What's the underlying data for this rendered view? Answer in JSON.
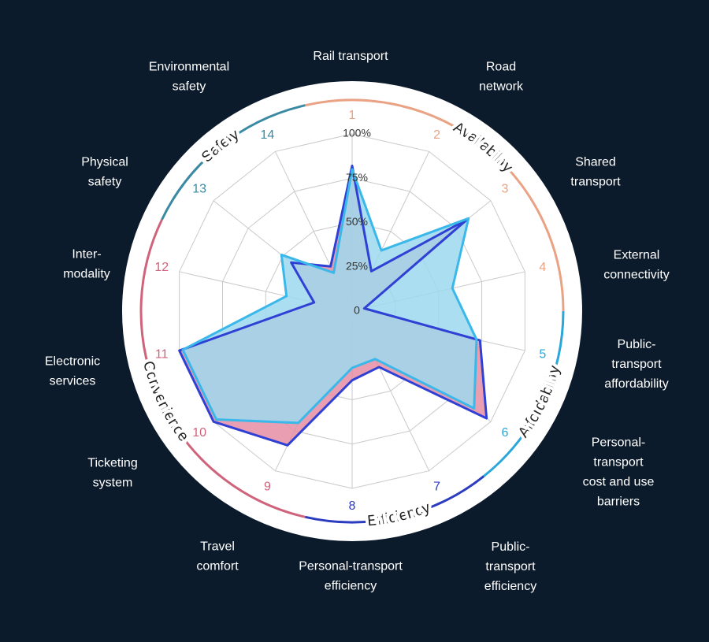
{
  "chart_data": {
    "type": "radar",
    "categories": [
      [
        "Rail transport"
      ],
      [
        "Road",
        "network"
      ],
      [
        "Shared",
        "transport"
      ],
      [
        "External",
        "connectivity"
      ],
      [
        "Public-",
        "transport",
        "affordability"
      ],
      [
        "Personal-",
        "transport",
        "cost and use",
        "barriers"
      ],
      [
        "Public-",
        "transport",
        "efficiency"
      ],
      [
        "Personal-transport",
        "efficiency"
      ],
      [
        "Travel",
        "comfort"
      ],
      [
        "Ticketing",
        "system"
      ],
      [
        "Electronic",
        "services"
      ],
      [
        "Inter-",
        "modality"
      ],
      [
        "Physical",
        "safety"
      ],
      [
        "Environmental",
        "safety"
      ]
    ],
    "axis_numbers": [
      1,
      2,
      3,
      4,
      5,
      6,
      7,
      8,
      9,
      10,
      11,
      12,
      13,
      14
    ],
    "groups": [
      {
        "label": "Availability",
        "color": "#e9a283",
        "axes": [
          1,
          2,
          3,
          4
        ]
      },
      {
        "label": "Affordability",
        "color": "#2aa6d8",
        "axes": [
          5,
          6
        ]
      },
      {
        "label": "Efficiency",
        "color": "#2b3cbf",
        "axes": [
          7,
          8
        ]
      },
      {
        "label": "Convenience",
        "color": "#d0637c",
        "axes": [
          9,
          10,
          11,
          12
        ]
      },
      {
        "label": "Safety",
        "color": "#3a8aa3",
        "axes": [
          13,
          14
        ]
      }
    ],
    "series": [
      {
        "color": "#2f40d4",
        "fill": "#e58ea3",
        "values": [
          82,
          25,
          83,
          7,
          74,
          97,
          35,
          39,
          84,
          100,
          100,
          22,
          44,
          28
        ]
      },
      {
        "color": "#3ab8ea",
        "fill": "#9dd8ee",
        "values": [
          80,
          38,
          84,
          58,
          72,
          88,
          30,
          32,
          70,
          98,
          98,
          38,
          51,
          24
        ]
      }
    ],
    "ylim": [
      0,
      100
    ],
    "yticks": [
      0,
      {
        "value": 25,
        "label": "25%"
      },
      {
        "value": 50,
        "label": "50%"
      },
      {
        "value": 75,
        "label": "75%"
      },
      {
        "value": 100,
        "label": "100%"
      }
    ],
    "grid": true
  }
}
